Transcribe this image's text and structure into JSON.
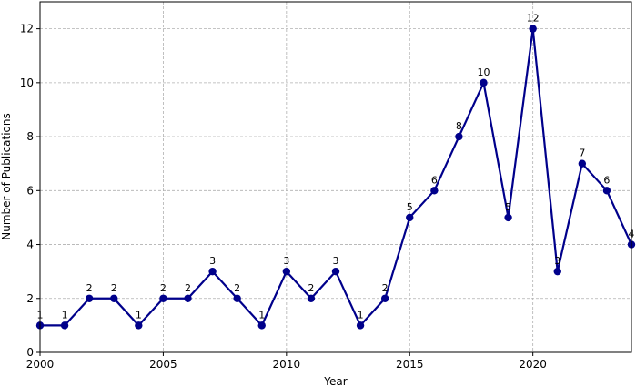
{
  "chart_data": {
    "type": "line",
    "title": "",
    "xlabel": "Year",
    "ylabel": "Number of Publications",
    "xlim": [
      2000,
      2024
    ],
    "ylim": [
      0,
      13
    ],
    "x_ticks": [
      2000,
      2005,
      2010,
      2015,
      2020
    ],
    "y_ticks": [
      0,
      2,
      4,
      6,
      8,
      10,
      12
    ],
    "grid": true,
    "color": "#00008b",
    "x": [
      2000,
      2001,
      2002,
      2003,
      2004,
      2005,
      2006,
      2007,
      2008,
      2009,
      2010,
      2011,
      2012,
      2013,
      2014,
      2015,
      2016,
      2017,
      2018,
      2019,
      2020,
      2021,
      2022,
      2023,
      2024
    ],
    "values": [
      1,
      1,
      2,
      2,
      1,
      2,
      2,
      3,
      2,
      1,
      3,
      2,
      3,
      1,
      2,
      5,
      6,
      8,
      10,
      5,
      12,
      3,
      7,
      6,
      4
    ]
  }
}
